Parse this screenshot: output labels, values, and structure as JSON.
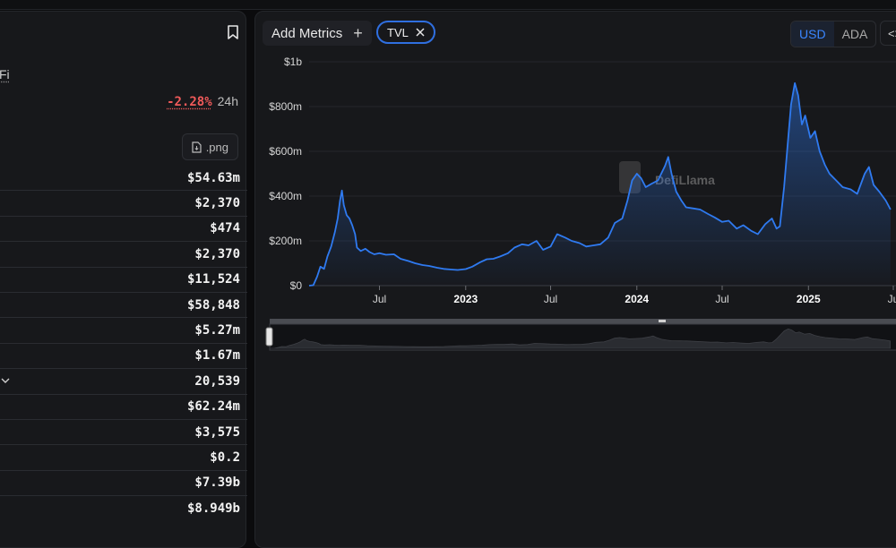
{
  "left": {
    "fi_text": "Fi",
    "change_value": "-2.28%",
    "change_period": "24h",
    "png_label": ".png",
    "rows": [
      {
        "value": "$54.63m"
      },
      {
        "value": "$2,370"
      },
      {
        "value": "$474"
      },
      {
        "value": "$2,370"
      },
      {
        "value": "$11,524"
      },
      {
        "value": "$58,848"
      },
      {
        "value": "$5.27m"
      },
      {
        "value": "$1.67m"
      },
      {
        "value": "20,539",
        "has_chevron": true
      },
      {
        "value": "$62.24m"
      },
      {
        "value": "$3,575"
      },
      {
        "value": "$0.2"
      },
      {
        "value": "$7.39b"
      },
      {
        "value": "$8.949b"
      }
    ]
  },
  "toolbar": {
    "add_metrics_label": "Add Metrics",
    "add_metrics_icon": "plus-icon",
    "chip_label": "TVL",
    "chip_close_icon": "close-icon",
    "currency_active": "USD",
    "currency_inactive": "ADA",
    "embed_label": "<>"
  },
  "colors": {
    "line": "#2f7af0",
    "accent": "#3a86ff",
    "negative": "#f05a5a"
  },
  "watermark_text": "DefiLlama",
  "chart_data": {
    "type": "area",
    "ylabel": "",
    "xlabel": "",
    "y_ticks": [
      "$0",
      "$200m",
      "$400m",
      "$600m",
      "$800m",
      "$1b"
    ],
    "x_ticks": [
      {
        "label": "Jul",
        "date": "2022-07-01",
        "year": false
      },
      {
        "label": "2023",
        "date": "2023-01-01",
        "year": true
      },
      {
        "label": "Jul",
        "date": "2023-07-01",
        "year": false
      },
      {
        "label": "2024",
        "date": "2024-01-01",
        "year": true
      },
      {
        "label": "Jul",
        "date": "2024-07-01",
        "year": false
      },
      {
        "label": "2025",
        "date": "2025-01-01",
        "year": true
      },
      {
        "label": "Ju",
        "date": "2025-07-01",
        "year": false
      }
    ],
    "ylim": [
      0,
      1000
    ],
    "y_unit": "millions USD",
    "grid": true,
    "series": [
      {
        "name": "TVL",
        "points": [
          [
            "2022-02-01",
            0
          ],
          [
            "2022-02-10",
            2
          ],
          [
            "2022-02-18",
            40
          ],
          [
            "2022-02-25",
            85
          ],
          [
            "2022-03-05",
            75
          ],
          [
            "2022-03-12",
            130
          ],
          [
            "2022-03-20",
            175
          ],
          [
            "2022-03-28",
            240
          ],
          [
            "2022-04-03",
            300
          ],
          [
            "2022-04-08",
            380
          ],
          [
            "2022-04-12",
            425
          ],
          [
            "2022-04-16",
            360
          ],
          [
            "2022-04-22",
            315
          ],
          [
            "2022-04-28",
            300
          ],
          [
            "2022-05-04",
            270
          ],
          [
            "2022-05-10",
            230
          ],
          [
            "2022-05-14",
            170
          ],
          [
            "2022-05-22",
            155
          ],
          [
            "2022-06-01",
            165
          ],
          [
            "2022-06-10",
            150
          ],
          [
            "2022-06-20",
            140
          ],
          [
            "2022-07-01",
            145
          ],
          [
            "2022-07-15",
            138
          ],
          [
            "2022-08-01",
            140
          ],
          [
            "2022-08-15",
            120
          ],
          [
            "2022-09-01",
            110
          ],
          [
            "2022-09-15",
            100
          ],
          [
            "2022-10-01",
            92
          ],
          [
            "2022-10-15",
            88
          ],
          [
            "2022-11-01",
            80
          ],
          [
            "2022-11-15",
            75
          ],
          [
            "2022-12-01",
            72
          ],
          [
            "2022-12-15",
            70
          ],
          [
            "2023-01-01",
            74
          ],
          [
            "2023-01-15",
            85
          ],
          [
            "2023-02-01",
            105
          ],
          [
            "2023-02-15",
            118
          ],
          [
            "2023-03-01",
            120
          ],
          [
            "2023-03-15",
            130
          ],
          [
            "2023-04-01",
            145
          ],
          [
            "2023-04-15",
            170
          ],
          [
            "2023-05-01",
            185
          ],
          [
            "2023-05-15",
            180
          ],
          [
            "2023-06-01",
            200
          ],
          [
            "2023-06-15",
            160
          ],
          [
            "2023-07-01",
            175
          ],
          [
            "2023-07-15",
            230
          ],
          [
            "2023-08-01",
            215
          ],
          [
            "2023-08-15",
            200
          ],
          [
            "2023-09-01",
            190
          ],
          [
            "2023-09-15",
            175
          ],
          [
            "2023-10-01",
            180
          ],
          [
            "2023-10-15",
            185
          ],
          [
            "2023-11-01",
            215
          ],
          [
            "2023-11-15",
            280
          ],
          [
            "2023-12-01",
            300
          ],
          [
            "2023-12-12",
            380
          ],
          [
            "2023-12-22",
            470
          ],
          [
            "2024-01-01",
            500
          ],
          [
            "2024-01-10",
            480
          ],
          [
            "2024-01-20",
            440
          ],
          [
            "2024-02-01",
            455
          ],
          [
            "2024-02-15",
            470
          ],
          [
            "2024-03-01",
            535
          ],
          [
            "2024-03-08",
            575
          ],
          [
            "2024-03-15",
            500
          ],
          [
            "2024-03-25",
            420
          ],
          [
            "2024-04-05",
            380
          ],
          [
            "2024-04-15",
            350
          ],
          [
            "2024-05-01",
            345
          ],
          [
            "2024-05-15",
            340
          ],
          [
            "2024-06-01",
            320
          ],
          [
            "2024-06-15",
            305
          ],
          [
            "2024-07-01",
            285
          ],
          [
            "2024-07-15",
            290
          ],
          [
            "2024-08-01",
            255
          ],
          [
            "2024-08-15",
            270
          ],
          [
            "2024-09-01",
            245
          ],
          [
            "2024-09-15",
            230
          ],
          [
            "2024-10-01",
            275
          ],
          [
            "2024-10-15",
            300
          ],
          [
            "2024-10-25",
            255
          ],
          [
            "2024-11-01",
            265
          ],
          [
            "2024-11-10",
            440
          ],
          [
            "2024-11-18",
            640
          ],
          [
            "2024-11-25",
            810
          ],
          [
            "2024-12-03",
            905
          ],
          [
            "2024-12-10",
            850
          ],
          [
            "2024-12-18",
            720
          ],
          [
            "2024-12-25",
            760
          ],
          [
            "2025-01-05",
            660
          ],
          [
            "2025-01-15",
            690
          ],
          [
            "2025-01-25",
            600
          ],
          [
            "2025-02-05",
            540
          ],
          [
            "2025-02-15",
            500
          ],
          [
            "2025-03-01",
            470
          ],
          [
            "2025-03-15",
            440
          ],
          [
            "2025-04-01",
            430
          ],
          [
            "2025-04-15",
            410
          ],
          [
            "2025-05-01",
            500
          ],
          [
            "2025-05-10",
            530
          ],
          [
            "2025-05-20",
            450
          ],
          [
            "2025-06-01",
            420
          ],
          [
            "2025-06-15",
            380
          ],
          [
            "2025-06-25",
            340
          ]
        ]
      }
    ]
  }
}
